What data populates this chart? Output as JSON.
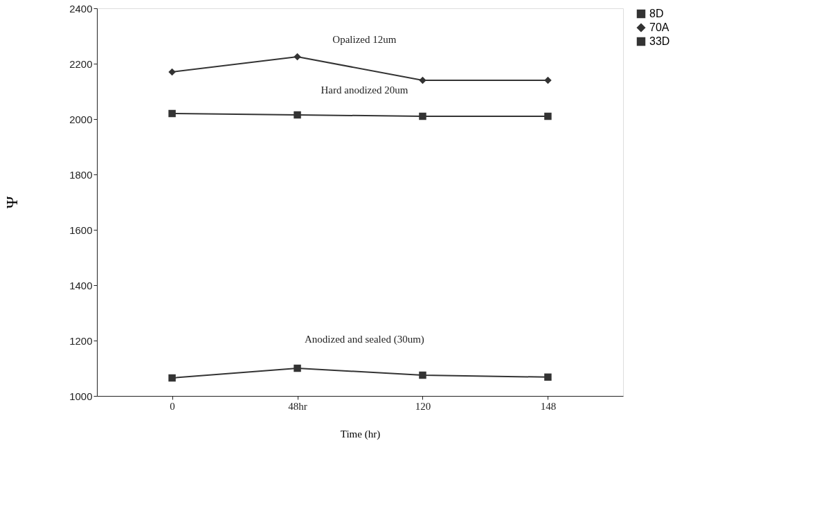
{
  "chart_data": {
    "type": "line",
    "xlabel": "Time (hr)",
    "ylabel": "Ψ",
    "categories": [
      "0",
      "48hr",
      "120",
      "148"
    ],
    "series": [
      {
        "name": "8D",
        "color": "#333333",
        "marker": "square",
        "values": [
          2020,
          2015,
          2010,
          2010
        ]
      },
      {
        "name": "70A",
        "color": "#333333",
        "marker": "diamond",
        "values": [
          2170,
          2225,
          2140,
          2140
        ]
      },
      {
        "name": "33D",
        "color": "#333333",
        "marker": "square",
        "values": [
          1065,
          1100,
          1075,
          1068
        ]
      }
    ],
    "ylim": [
      1000,
      2400
    ],
    "yticks": [
      1000,
      1200,
      1400,
      1600,
      1800,
      2000,
      2200,
      2400
    ],
    "annotations": [
      "Opalized 12um",
      "Hard anodized 20um",
      "Anodized and sealed (30um)"
    ],
    "legend": "right",
    "grid": false,
    "line_style": "solid"
  }
}
